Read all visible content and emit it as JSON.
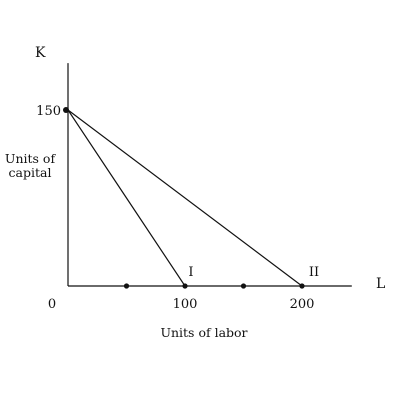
{
  "chart_data": {
    "type": "line",
    "title": "",
    "xlabel": "Units of labor",
    "ylabel": "Units of capital",
    "x_axis_letter": "L",
    "y_axis_letter": "K",
    "xlim": [
      0,
      240
    ],
    "ylim": [
      0,
      190
    ],
    "origin_label": "0",
    "x_tick_labels": [
      {
        "value": 100,
        "label": "100"
      },
      {
        "value": 200,
        "label": "200"
      }
    ],
    "y_tick_labels": [
      {
        "value": 150,
        "label": "150"
      }
    ],
    "axis_dots_x": [
      50,
      100,
      150,
      200
    ],
    "series": [
      {
        "name": "I",
        "x": [
          0,
          100
        ],
        "y": [
          150,
          0
        ]
      },
      {
        "name": "II",
        "x": [
          0,
          200
        ],
        "y": [
          150,
          0
        ]
      }
    ],
    "points": [
      {
        "x": 0,
        "y": 150
      }
    ],
    "grid": false,
    "colors": {
      "ink": "#111111"
    }
  }
}
